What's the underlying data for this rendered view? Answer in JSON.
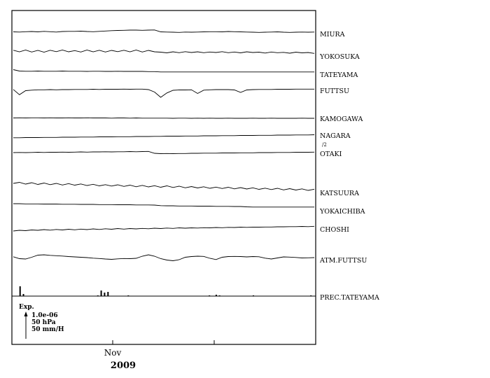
{
  "chart_data": {
    "type": "line",
    "title": "",
    "x_axis": {
      "tick_labels": [
        "Nov"
      ],
      "year_label": "2009"
    },
    "series": [
      {
        "name": "MIURA",
        "values": [
          0.2,
          0.1,
          0.3,
          0.4,
          0.2,
          0.5,
          0.3,
          0.1,
          0.4,
          0.5,
          0.5,
          0.6,
          0.4,
          0.3,
          0.5,
          0.7,
          0.9,
          1.0,
          1.1,
          1.2,
          1.2,
          1.1,
          1.2,
          1.3,
          0.2,
          0.1,
          0.0,
          -0.1,
          0.1,
          0.0,
          0.1,
          0.2,
          0.3,
          0.3,
          0.2,
          0.4,
          0.3,
          0.2,
          0.1,
          0.0,
          -0.1,
          0.0,
          0.1,
          0.2,
          0.0,
          -0.1,
          0.0,
          0.1,
          0.0,
          0.1
        ]
      },
      {
        "name": "YOKOSUKA",
        "values": [
          0.5,
          -0.4,
          0.6,
          -0.5,
          0.4,
          -0.6,
          0.5,
          -0.3,
          0.6,
          -0.4,
          0.3,
          -0.5,
          0.6,
          -0.4,
          0.5,
          -0.5,
          0.4,
          -0.3,
          0.5,
          -0.4,
          0.6,
          -0.5,
          0.4,
          -0.4,
          -0.6,
          -1.0,
          -0.4,
          -0.9,
          -0.3,
          -0.8,
          -0.4,
          -0.9,
          -0.5,
          -0.8,
          -0.3,
          -0.9,
          -0.5,
          -1.0,
          -0.4,
          -0.8,
          -0.6,
          -1.1,
          -0.5,
          -0.9,
          -0.7,
          -1.2,
          -0.6,
          -1.0,
          -0.8,
          -1.3
        ]
      },
      {
        "name": "TATEYAMA",
        "values": [
          1.0,
          0.2,
          0.1,
          0.1,
          0.2,
          0.1,
          0.1,
          0.1,
          0.2,
          0.1,
          0.1,
          0.1,
          0.0,
          0.1,
          0.1,
          0.0,
          0.0,
          0.1,
          0.0,
          0.0,
          0.0,
          0.0,
          -0.1,
          -0.1,
          -0.3,
          -0.3,
          -0.3,
          -0.3,
          -0.3,
          -0.3,
          -0.3,
          -0.3,
          -0.3,
          -0.3,
          -0.3,
          -0.3,
          -0.3,
          -0.3,
          -0.3,
          -0.3,
          -0.3,
          -0.3,
          -0.3,
          -0.3,
          -0.3,
          -0.3,
          -0.3,
          -0.3,
          -0.3,
          -0.3
        ]
      },
      {
        "name": "FUTTSU",
        "values": [
          0.5,
          -2.5,
          -0.2,
          0.1,
          0.3,
          0.3,
          0.4,
          0.3,
          0.4,
          0.4,
          0.5,
          0.5,
          0.5,
          0.6,
          0.5,
          0.6,
          0.6,
          0.6,
          0.7,
          0.6,
          0.7,
          0.7,
          0.4,
          -1.0,
          -4.0,
          -1.5,
          0.0,
          0.2,
          0.2,
          0.3,
          -1.8,
          0.1,
          0.3,
          0.4,
          0.4,
          0.4,
          0.2,
          -1.2,
          0.2,
          0.4,
          0.5,
          0.5,
          0.5,
          0.6,
          0.6,
          0.6,
          0.7,
          0.7,
          0.7,
          0.7
        ]
      },
      {
        "name": "KAMOGAWA",
        "values": [
          0.2,
          0.3,
          0.2,
          0.3,
          0.3,
          0.2,
          0.3,
          0.2,
          0.2,
          0.3,
          0.2,
          0.2,
          0.3,
          0.2,
          0.2,
          0.2,
          0.1,
          0.2,
          0.2,
          0.1,
          0.2,
          0.1,
          0.1,
          0.1,
          0.1,
          0.1,
          0.0,
          0.1,
          0.1,
          0.0,
          0.1,
          0.0,
          0.1,
          0.0,
          0.0,
          0.1,
          0.0,
          0.0,
          0.0,
          0.1,
          0.0,
          0.0,
          0.1,
          0.0,
          0.0,
          0.0,
          0.0,
          0.1,
          0.0,
          0.0
        ]
      },
      {
        "name": "NAGARA",
        "values": [
          -1.5,
          -1.5,
          -1.4,
          -1.4,
          -1.4,
          -1.3,
          -1.3,
          -1.3,
          -1.2,
          -1.2,
          -1.2,
          -1.1,
          -1.1,
          -1.1,
          -1.0,
          -1.0,
          -1.0,
          -0.9,
          -0.9,
          -0.9,
          -0.8,
          -0.8,
          -0.8,
          -0.7,
          -0.7,
          -0.6,
          -0.6,
          -0.6,
          -0.5,
          -0.5,
          -0.5,
          -0.4,
          -0.4,
          -0.4,
          -0.3,
          -0.3,
          -0.3,
          -0.2,
          -0.2,
          -0.2,
          -0.1,
          -0.1,
          -0.1,
          0.0,
          0.0,
          0.0,
          0.1,
          0.1,
          0.1,
          0.2
        ]
      },
      {
        "name": "OTAKI",
        "values": [
          0.4,
          0.5,
          0.4,
          0.5,
          0.6,
          0.5,
          0.6,
          0.6,
          0.7,
          0.6,
          0.7,
          0.8,
          0.7,
          0.8,
          0.8,
          0.9,
          0.8,
          0.9,
          0.9,
          1.0,
          0.9,
          1.0,
          1.1,
          0.0,
          -0.2,
          -0.1,
          -0.2,
          -0.1,
          -0.1,
          0.0,
          0.0,
          0.1,
          0.1,
          0.1,
          0.2,
          0.2,
          0.2,
          0.3,
          0.3,
          0.3,
          0.4,
          0.4,
          0.4,
          0.5,
          0.5,
          0.5,
          0.6,
          0.6,
          0.6,
          0.7
        ]
      },
      {
        "name": "KATSUURA",
        "values": [
          1.6,
          2.2,
          1.2,
          2.0,
          1.0,
          1.8,
          0.9,
          1.6,
          0.7,
          1.5,
          0.6,
          1.3,
          0.4,
          1.1,
          0.2,
          0.9,
          0.1,
          0.8,
          -0.1,
          0.6,
          -0.3,
          0.5,
          -0.4,
          0.3,
          -0.6,
          0.2,
          -0.7,
          0.0,
          -0.9,
          -0.2,
          -1.0,
          -0.3,
          -1.2,
          -0.5,
          -1.3,
          -0.6,
          -1.5,
          -0.8,
          -1.6,
          -0.9,
          -1.8,
          -1.1,
          -1.9,
          -1.2,
          -2.1,
          -1.4,
          -2.2,
          -1.5,
          -2.4,
          -1.7
        ]
      },
      {
        "name": "YOKAICHIBA",
        "values": [
          1.2,
          1.2,
          1.1,
          1.1,
          1.1,
          1.0,
          1.0,
          1.0,
          0.9,
          0.9,
          0.9,
          0.8,
          0.8,
          0.8,
          0.7,
          0.7,
          0.7,
          0.6,
          0.6,
          0.6,
          0.5,
          0.5,
          0.5,
          0.4,
          0.1,
          0.0,
          0.0,
          -0.1,
          -0.1,
          -0.1,
          -0.2,
          -0.2,
          -0.2,
          -0.3,
          -0.3,
          -0.3,
          -0.4,
          -0.4,
          -0.6,
          -0.7,
          -0.7,
          -0.7,
          -0.7,
          -0.7,
          -0.7,
          -0.7,
          -0.7,
          -0.7,
          -0.7,
          -0.7
        ]
      },
      {
        "name": "CHOSHI",
        "values": [
          -1.2,
          -0.8,
          -1.0,
          -0.6,
          -0.8,
          -0.4,
          -0.7,
          -0.3,
          -0.6,
          -0.2,
          -0.5,
          -0.1,
          -0.4,
          0.0,
          -0.3,
          0.1,
          -0.2,
          0.2,
          -0.1,
          0.2,
          0.0,
          0.3,
          0.1,
          0.4,
          0.2,
          0.5,
          0.3,
          0.6,
          0.4,
          0.6,
          0.5,
          0.7,
          0.6,
          0.8,
          0.7,
          0.9,
          0.8,
          1.0,
          0.9,
          1.0,
          1.0,
          1.1,
          1.1,
          1.2,
          1.2,
          1.3,
          1.3,
          1.4,
          1.3,
          1.5
        ]
      },
      {
        "name": "ATM.FUTTSU",
        "values": [
          0.5,
          -0.6,
          -0.8,
          0.2,
          1.4,
          1.6,
          1.3,
          1.1,
          0.9,
          0.6,
          0.4,
          0.2,
          0.0,
          -0.3,
          -0.5,
          -0.8,
          -1.0,
          -0.7,
          -0.5,
          -0.6,
          -0.4,
          0.8,
          1.6,
          0.8,
          -0.6,
          -1.4,
          -1.8,
          -1.2,
          0.2,
          0.6,
          0.8,
          0.7,
          -0.4,
          -1.1,
          0.2,
          0.6,
          0.7,
          0.6,
          0.4,
          0.6,
          0.5,
          -0.3,
          -0.8,
          -0.2,
          0.4,
          0.3,
          0.1,
          -0.2,
          -0.1,
          0.0
        ]
      },
      {
        "name": "PREC.TATEYAMA",
        "values": [
          0,
          0,
          14,
          3,
          0,
          0,
          0,
          0,
          0,
          0,
          0,
          0,
          0,
          0,
          0,
          0,
          0,
          0,
          0,
          0,
          0,
          0,
          0,
          0,
          0,
          1,
          8,
          5,
          6,
          0,
          0,
          0,
          0,
          0,
          1,
          0,
          0,
          0,
          0,
          0,
          0,
          0,
          0,
          0,
          0,
          0,
          0,
          0,
          0,
          0,
          0,
          0,
          0,
          0,
          0,
          0,
          0,
          0,
          1,
          0,
          2,
          1,
          0,
          0,
          0,
          0,
          0,
          0,
          0,
          0,
          0,
          1,
          0,
          0,
          0,
          0,
          0,
          0,
          0,
          0,
          0,
          0,
          0,
          0,
          0,
          0,
          0,
          0,
          1,
          0
        ]
      }
    ],
    "annotations": {
      "nagara_scale": "/2",
      "legend": {
        "title": "Exp.",
        "lines": [
          "1.0e-06",
          "50 hPa",
          "50 mm/H"
        ]
      }
    },
    "grid": false
  }
}
